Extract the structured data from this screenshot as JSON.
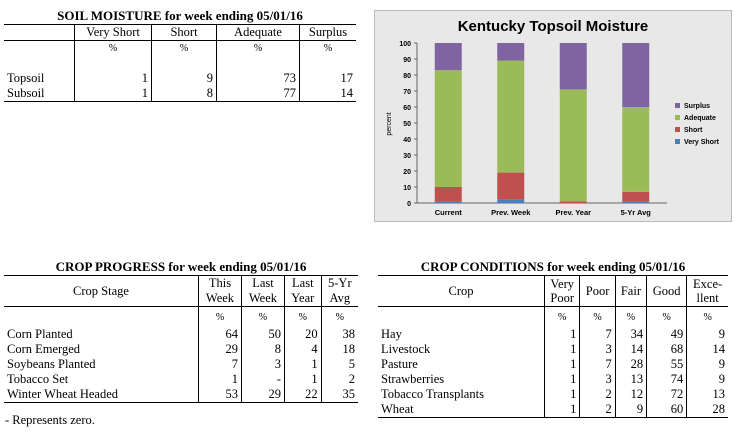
{
  "soil": {
    "title": "SOIL MOISTURE for week ending 05/01/16",
    "headers": [
      "Very Short",
      "Short",
      "Adequate",
      "Surplus"
    ],
    "pct": "%",
    "rows": [
      {
        "label": "Topsoil",
        "values": [
          "1",
          "9",
          "73",
          "17"
        ]
      },
      {
        "label": "Subsoil",
        "values": [
          "1",
          "8",
          "77",
          "14"
        ]
      }
    ]
  },
  "chart_data": {
    "type": "bar",
    "stacked": true,
    "title": "Kentucky Topsoil Moisture",
    "ylabel": "percent",
    "xlabel": "",
    "ylim": [
      0,
      100
    ],
    "yticks": [
      "0",
      "10",
      "20",
      "30",
      "40",
      "50",
      "60",
      "70",
      "80",
      "90",
      "100"
    ],
    "categories": [
      "Current",
      "Prev. Week",
      "Prev. Year",
      "5-Yr Avg"
    ],
    "series": [
      {
        "name": "Very Short",
        "color": "#4a7fc1",
        "values": [
          1,
          2,
          0,
          1
        ]
      },
      {
        "name": "Short",
        "color": "#c0504d",
        "values": [
          9,
          17,
          1,
          6
        ]
      },
      {
        "name": "Adequate",
        "color": "#9bbb59",
        "values": [
          73,
          70,
          70,
          53
        ]
      },
      {
        "name": "Surplus",
        "color": "#8064a2",
        "values": [
          17,
          11,
          29,
          40
        ]
      }
    ],
    "legend_position": "right",
    "grid": false
  },
  "progress": {
    "title": "CROP PROGRESS for week ending 05/01/16",
    "stage_header": "Crop Stage",
    "headers": [
      [
        "This",
        "Week"
      ],
      [
        "Last",
        "Week"
      ],
      [
        "Last",
        "Year"
      ],
      [
        "5-Yr",
        "Avg"
      ]
    ],
    "pct": "%",
    "rows": [
      {
        "label": "Corn Planted",
        "values": [
          "64",
          "50",
          "20",
          "38"
        ]
      },
      {
        "label": "Corn Emerged",
        "values": [
          "29",
          "8",
          "4",
          "18"
        ]
      },
      {
        "label": "Soybeans Planted",
        "values": [
          "7",
          "3",
          "1",
          "5"
        ]
      },
      {
        "label": "Tobacco Set",
        "values": [
          "1",
          "-",
          "1",
          "2"
        ]
      },
      {
        "label": "Winter Wheat Headed",
        "values": [
          "53",
          "29",
          "22",
          "35"
        ]
      }
    ],
    "footnote": "- Represents zero."
  },
  "conditions": {
    "title": "CROP CONDITIONS for week ending 05/01/16",
    "crop_header": "Crop",
    "headers": [
      [
        "Very",
        "Poor"
      ],
      [
        "Poor",
        ""
      ],
      [
        "Fair",
        ""
      ],
      [
        "Good",
        ""
      ],
      [
        "Exce-",
        "llent"
      ]
    ],
    "pct": "%",
    "rows": [
      {
        "label": "Hay",
        "values": [
          "1",
          "7",
          "34",
          "49",
          "9"
        ]
      },
      {
        "label": "Livestock",
        "values": [
          "1",
          "3",
          "14",
          "68",
          "14"
        ]
      },
      {
        "label": "Pasture",
        "values": [
          "1",
          "7",
          "28",
          "55",
          "9"
        ]
      },
      {
        "label": "Strawberries",
        "values": [
          "1",
          "3",
          "13",
          "74",
          "9"
        ]
      },
      {
        "label": "Tobacco Transplants",
        "values": [
          "1",
          "2",
          "12",
          "72",
          "13"
        ]
      },
      {
        "label": "Wheat",
        "values": [
          "1",
          "2",
          "9",
          "60",
          "28"
        ]
      }
    ]
  }
}
